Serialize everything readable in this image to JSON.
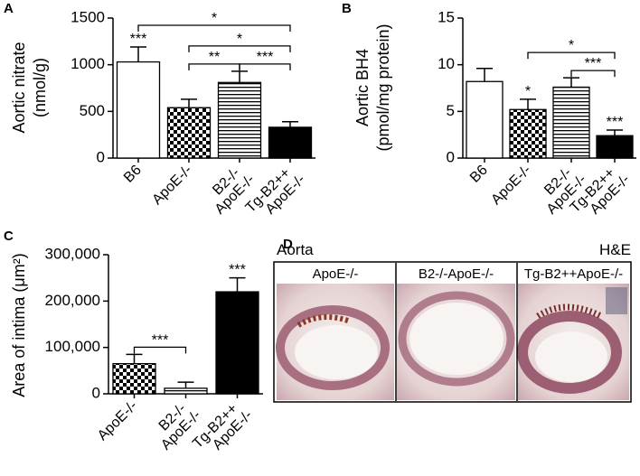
{
  "chart_data": [
    {
      "panel_label": "A",
      "type": "bar",
      "ylabel": [
        "Aortic nitrate",
        "(nmol/g)"
      ],
      "categories": [
        "B6",
        "ApoE-/-",
        "B2-/- ApoE-/-",
        "Tg-B2++ ApoE-/-"
      ],
      "values": [
        1030,
        540,
        810,
        330
      ],
      "errors": [
        160,
        90,
        120,
        60
      ],
      "fills": [
        "white",
        "checker",
        "hlines",
        "black"
      ],
      "significance": [
        "***",
        null,
        null,
        null
      ],
      "comparisons": [
        {
          "pair": [
            0,
            3
          ],
          "label": "*"
        },
        {
          "pair": [
            1,
            3
          ],
          "label": "*"
        },
        {
          "pair": [
            1,
            2
          ],
          "label": "**"
        },
        {
          "pair": [
            2,
            3
          ],
          "label": "***"
        }
      ],
      "ylim": [
        0,
        1500
      ],
      "yticks": [
        0,
        500,
        1000,
        1500
      ]
    },
    {
      "panel_label": "B",
      "type": "bar",
      "ylabel": [
        "Aortic BH4",
        "(pmol/mg protein)"
      ],
      "categories": [
        "B6",
        "ApoE-/-",
        "B2-/- ApoE-/-",
        "Tg-B2++ ApoE-/-"
      ],
      "values": [
        8.2,
        5.2,
        7.6,
        2.4
      ],
      "errors": [
        1.4,
        1.1,
        1.0,
        0.6
      ],
      "fills": [
        "white",
        "checker",
        "hlines",
        "black"
      ],
      "significance": [
        null,
        "*",
        null,
        "***"
      ],
      "comparisons": [
        {
          "pair": [
            1,
            3
          ],
          "label": "*"
        },
        {
          "pair": [
            2,
            3
          ],
          "label": "***"
        }
      ],
      "ylim": [
        0,
        15
      ],
      "yticks": [
        0,
        5,
        10,
        15
      ]
    },
    {
      "panel_label": "C",
      "type": "bar",
      "ylabel": [
        "Area of intima (μm²)"
      ],
      "categories": [
        "ApoE-/-",
        "B2-/- ApoE-/-",
        "Tg-B2++ ApoE-/-"
      ],
      "values": [
        65000,
        12000,
        220000
      ],
      "errors": [
        20000,
        13000,
        30000
      ],
      "fills": [
        "checker",
        "hlines",
        "black"
      ],
      "significance": [
        null,
        null,
        "***"
      ],
      "comparisons": [
        {
          "pair": [
            0,
            1
          ],
          "label": "***"
        }
      ],
      "ylim": [
        0,
        300000
      ],
      "yticks": [
        0,
        {
          "value": 100000,
          "label": "100,000"
        },
        {
          "value": 200000,
          "label": "200,000"
        },
        {
          "value": 300000,
          "label": "300,000"
        }
      ]
    }
  ],
  "panel_d": {
    "panel_label": "D",
    "left_caption": "Aorta",
    "right_caption": "H&E",
    "images": [
      "ApoE-/-",
      "B2-/-ApoE-/-",
      "Tg-B2++ApoE-/-"
    ]
  }
}
